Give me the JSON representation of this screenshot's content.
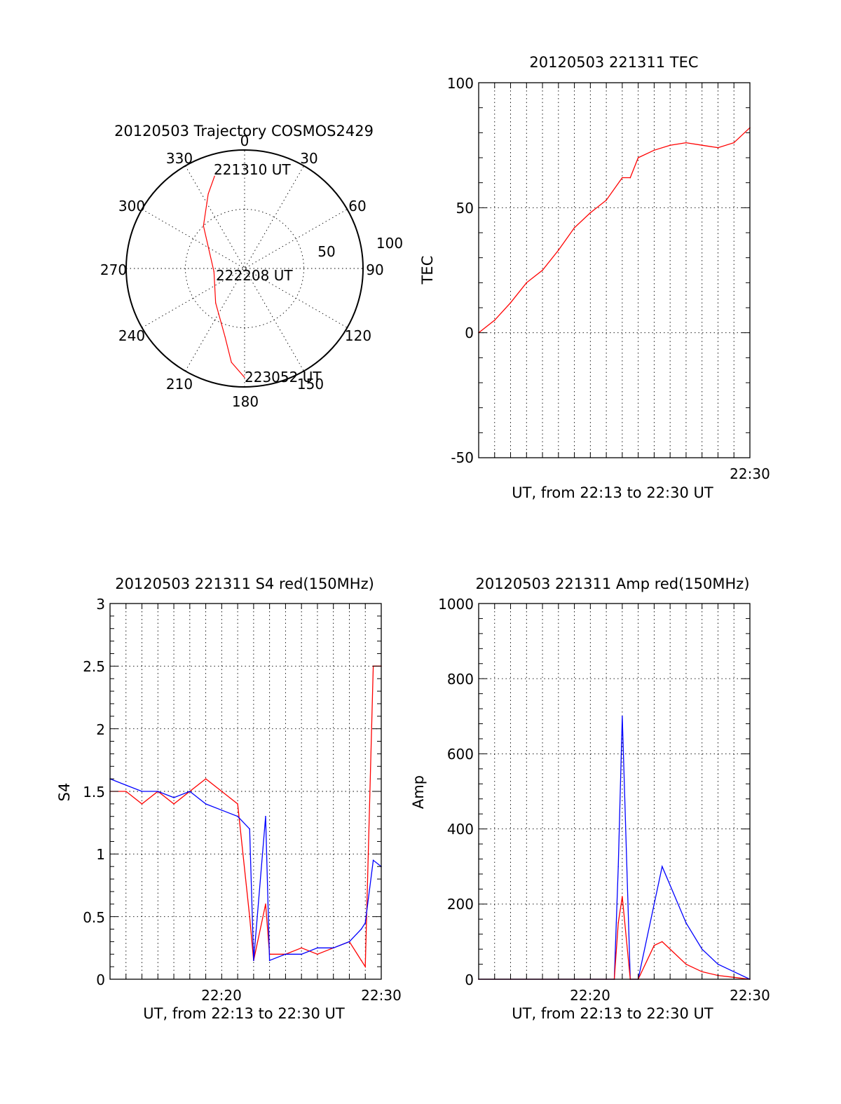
{
  "colors": {
    "red": "#ff0000",
    "blue": "#0000ff",
    "axis": "#000000"
  },
  "chart_data": [
    {
      "type": "polar",
      "title": "20120503 Trajectory COSMOS2429",
      "angle_labels": [
        "0",
        "30",
        "60",
        "90",
        "120",
        "150",
        "180",
        "210",
        "240",
        "270",
        "300",
        "330"
      ],
      "angles": [
        0,
        30,
        60,
        90,
        120,
        150,
        180,
        210,
        240,
        270,
        300,
        330
      ],
      "radial_labels": [
        "50",
        "100"
      ],
      "radial_values": [
        50,
        100
      ],
      "rlim": [
        0,
        100
      ],
      "grid": true,
      "series": [
        {
          "color": "#ff0000",
          "points": [
            {
              "az": 342,
              "r": 82,
              "label": "221310 UT"
            },
            {
              "az": 334,
              "r": 70
            },
            {
              "az": 316,
              "r": 50
            },
            {
              "az": 264,
              "r": 26
            },
            {
              "az": 220,
              "r": 38
            },
            {
              "az": 196,
              "r": 60
            },
            {
              "az": 188,
              "r": 80
            },
            {
              "az": 180,
              "r": 92,
              "label": "223052 UT"
            }
          ]
        }
      ],
      "annotations": [
        {
          "text": "221310 UT",
          "az": 342,
          "r": 82
        },
        {
          "text": "222208 UT",
          "az": 264,
          "r": 26
        },
        {
          "text": "223052 UT",
          "az": 180,
          "r": 92
        }
      ]
    },
    {
      "type": "line",
      "title": "20120503 221311 TEC",
      "xlabel": "UT, from 22:13 to 22:30 UT",
      "ylabel": "TEC",
      "xlim": [
        "22:13",
        "22:30"
      ],
      "x_tick_labels": [
        "22:30"
      ],
      "x_tick_positions": [
        "22:30"
      ],
      "ylim": [
        -50,
        100
      ],
      "y_ticks": [
        -50,
        0,
        50,
        100
      ],
      "y_tick_labels": [
        "-50",
        "0",
        "50",
        "100"
      ],
      "grid": true,
      "series": [
        {
          "color": "#ff0000",
          "x": [
            "22:13",
            "22:14",
            "22:15",
            "22:16",
            "22:17",
            "22:18",
            "22:19",
            "22:20",
            "22:21",
            "22:22",
            "22:22:30",
            "22:23",
            "22:24",
            "22:25",
            "22:26",
            "22:27",
            "22:28",
            "22:29",
            "22:30"
          ],
          "y": [
            0,
            5,
            12,
            20,
            25,
            33,
            42,
            48,
            53,
            62,
            62,
            70,
            73,
            75,
            76,
            75,
            74,
            76,
            82
          ]
        }
      ]
    },
    {
      "type": "line",
      "title": "20120503 221311 S4 red(150MHz)",
      "xlabel": "UT, from 22:13 to 22:30 UT",
      "ylabel": "S4",
      "xlim": [
        "22:13",
        "22:30"
      ],
      "x_tick_labels": [
        "22:20",
        "22:30"
      ],
      "x_tick_positions": [
        "22:20",
        "22:30"
      ],
      "ylim": [
        0,
        3
      ],
      "y_ticks": [
        0,
        0.5,
        1,
        1.5,
        2,
        2.5,
        3
      ],
      "y_tick_labels": [
        "0",
        "0.5",
        "1",
        "1.5",
        "2",
        "2.5",
        "3"
      ],
      "grid": true,
      "series": [
        {
          "color": "#ff0000",
          "x": [
            "22:13",
            "22:14",
            "22:15",
            "22:16",
            "22:17",
            "22:18",
            "22:19",
            "22:20",
            "22:21",
            "22:21:45",
            "22:22",
            "22:22:45",
            "22:23",
            "22:24",
            "22:25",
            "22:26",
            "22:27",
            "22:28",
            "22:28:45",
            "22:29",
            "22:29:30",
            "22:30"
          ],
          "y": [
            1.5,
            1.5,
            1.4,
            1.5,
            1.4,
            1.5,
            1.6,
            1.5,
            1.4,
            0.5,
            0.15,
            0.6,
            0.2,
            0.2,
            0.25,
            0.2,
            0.25,
            0.3,
            0.15,
            0.1,
            2.5,
            2.5
          ]
        },
        {
          "color": "#0000ff",
          "x": [
            "22:13",
            "22:14",
            "22:15",
            "22:16",
            "22:17",
            "22:18",
            "22:19",
            "22:20",
            "22:21",
            "22:21:45",
            "22:22",
            "22:22:45",
            "22:23",
            "22:24",
            "22:25",
            "22:26",
            "22:27",
            "22:28",
            "22:28:45",
            "22:29",
            "22:29:30",
            "22:30"
          ],
          "y": [
            1.6,
            1.55,
            1.5,
            1.5,
            1.45,
            1.5,
            1.4,
            1.35,
            1.3,
            1.2,
            0.15,
            1.3,
            0.15,
            0.2,
            0.2,
            0.25,
            0.25,
            0.3,
            0.4,
            0.45,
            0.95,
            0.9
          ]
        }
      ]
    },
    {
      "type": "line",
      "title": "20120503 221311 Amp red(150MHz)",
      "xlabel": "UT, from 22:13 to 22:30 UT",
      "ylabel": "Amp",
      "xlim": [
        "22:13",
        "22:30"
      ],
      "x_tick_labels": [
        "22:20",
        "22:30"
      ],
      "x_tick_positions": [
        "22:20",
        "22:30"
      ],
      "ylim": [
        0,
        1000
      ],
      "y_ticks": [
        0,
        200,
        400,
        600,
        800,
        1000
      ],
      "y_tick_labels": [
        "0",
        "200",
        "400",
        "600",
        "800",
        "1000"
      ],
      "grid": true,
      "series": [
        {
          "color": "#0000ff",
          "x": [
            "22:13",
            "22:15",
            "22:17",
            "22:19",
            "22:21",
            "22:21:30",
            "22:21:45",
            "22:22",
            "22:22:30",
            "22:23",
            "22:24",
            "22:24:30",
            "22:25",
            "22:26",
            "22:27",
            "22:28",
            "22:29",
            "22:30"
          ],
          "y": [
            0,
            0,
            0,
            0,
            0,
            0,
            300,
            700,
            0,
            0,
            200,
            300,
            250,
            150,
            80,
            40,
            20,
            0
          ]
        },
        {
          "color": "#ff0000",
          "x": [
            "22:13",
            "22:15",
            "22:17",
            "22:19",
            "22:21",
            "22:21:30",
            "22:21:45",
            "22:22",
            "22:22:30",
            "22:23",
            "22:24",
            "22:24:30",
            "22:25",
            "22:26",
            "22:27",
            "22:28",
            "22:29",
            "22:30"
          ],
          "y": [
            0,
            0,
            0,
            0,
            0,
            0,
            150,
            220,
            0,
            0,
            90,
            100,
            80,
            40,
            20,
            10,
            5,
            0
          ]
        }
      ]
    }
  ]
}
